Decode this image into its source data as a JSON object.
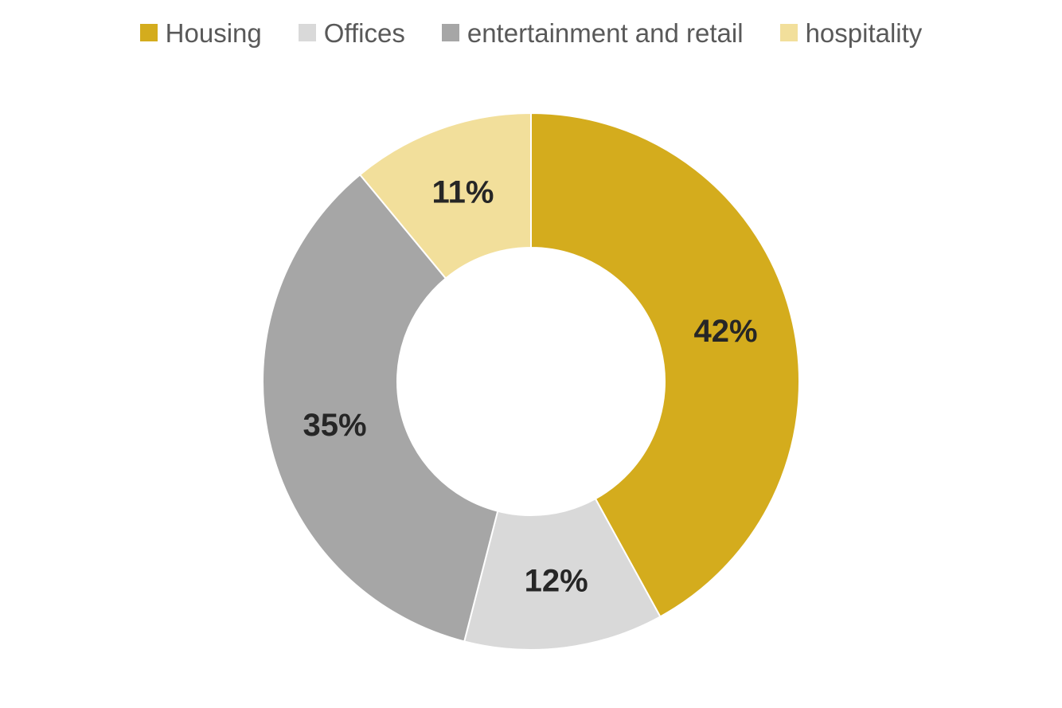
{
  "chart_data": {
    "type": "pie",
    "variant": "donut",
    "title": "",
    "legend_position": "top",
    "categories": [
      "Housing",
      "Offices",
      "entertainment and retail",
      "hospitality"
    ],
    "values": [
      42,
      12,
      35,
      11
    ],
    "labels": [
      "42%",
      "12%",
      "35%",
      "11%"
    ],
    "colors": [
      "#D4AC1D",
      "#D9D9D9",
      "#A6A6A6",
      "#F2DF9B"
    ]
  }
}
